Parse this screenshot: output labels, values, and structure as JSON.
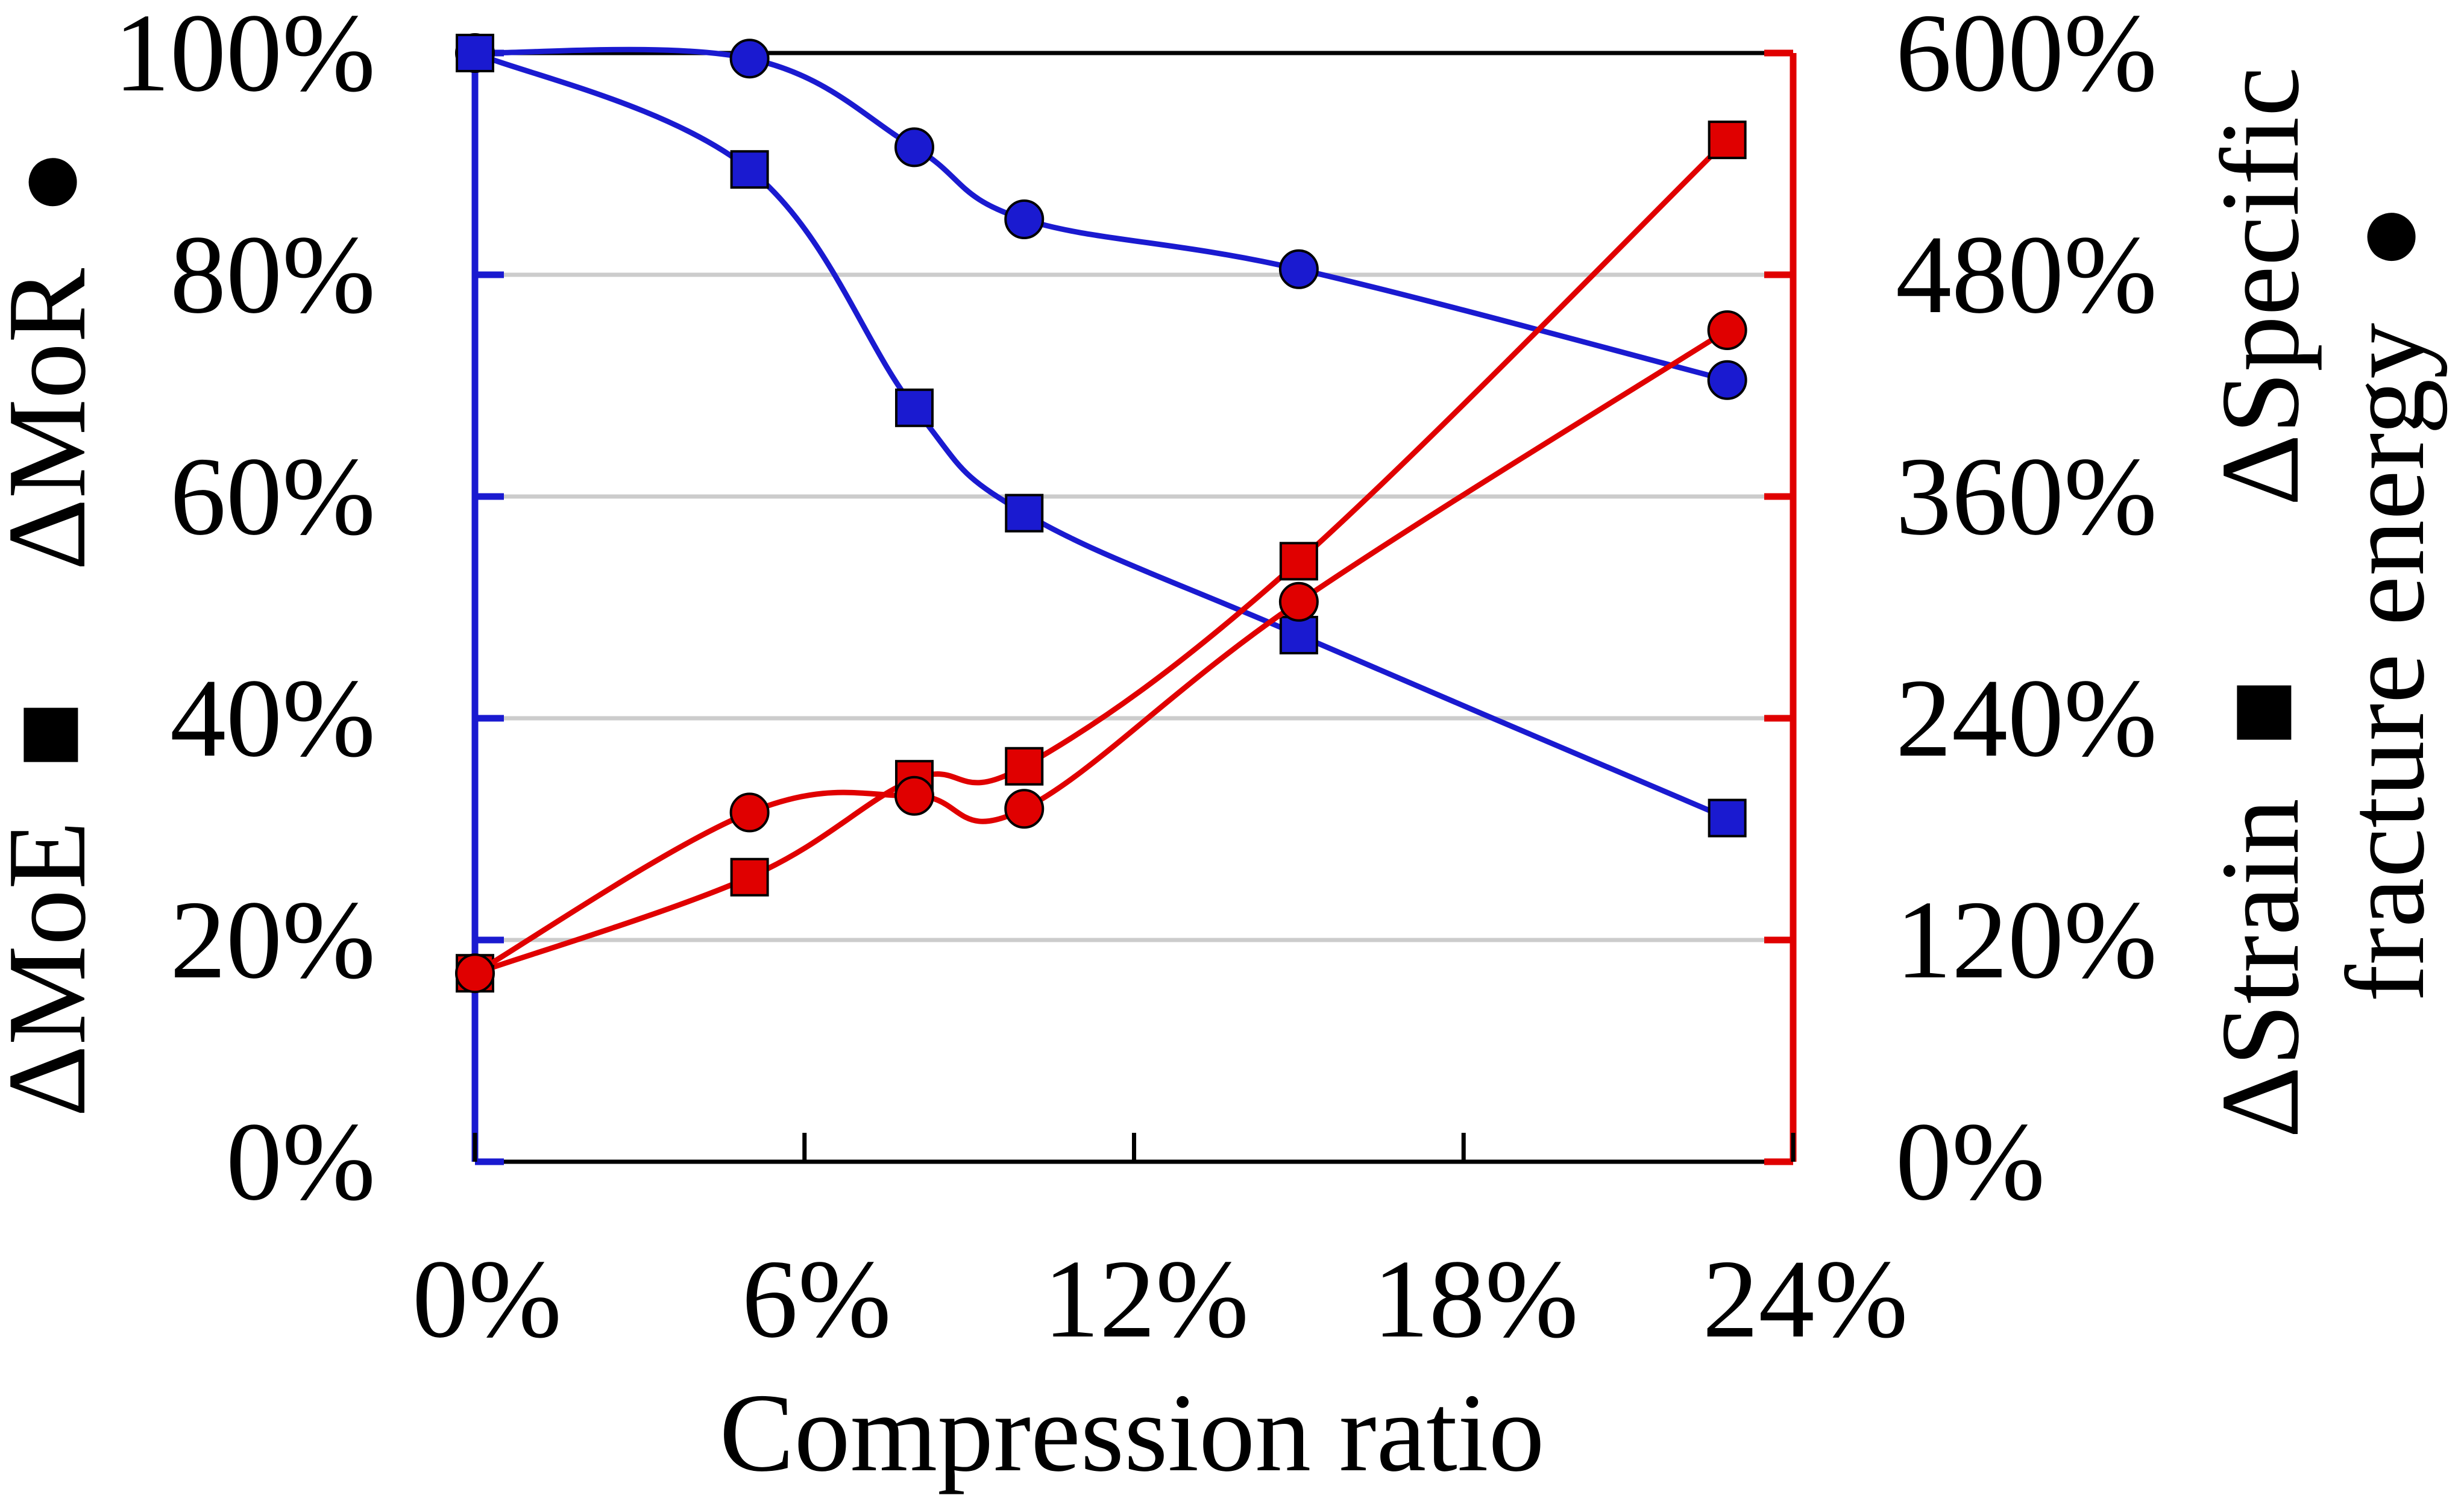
{
  "colors": {
    "left_axis": "#1a1ad0",
    "right_axis": "#e00000",
    "grid": "#cccccc",
    "frame": "#000000",
    "marker_stroke": "#000000"
  },
  "chart_data": {
    "type": "line",
    "xlabel": "Compression ratio",
    "x_unit": "%",
    "xlim": [
      0,
      24
    ],
    "x_ticks": [
      0,
      6,
      12,
      18,
      24
    ],
    "x_tick_labels": [
      "0%",
      "6%",
      "12%",
      "18%",
      "24%"
    ],
    "y_left": {
      "lim": [
        0,
        100
      ],
      "ticks": [
        0,
        20,
        40,
        60,
        80,
        100
      ],
      "tick_labels": [
        "0%",
        "20%",
        "40%",
        "60%",
        "80%",
        "100%"
      ],
      "label_parts": [
        "ΔMoE",
        "■",
        "ΔMoR",
        "●"
      ]
    },
    "y_right": {
      "lim": [
        0,
        600
      ],
      "ticks": [
        0,
        120,
        240,
        360,
        480,
        600
      ],
      "tick_labels": [
        "0%",
        "120%",
        "240%",
        "360%",
        "480%",
        "600%"
      ],
      "label_line1_parts": [
        "ΔStrain",
        "■",
        "ΔSpecific"
      ],
      "label_line2_parts": [
        "fracture energy",
        "●"
      ]
    },
    "series": [
      {
        "name": "ΔMoR",
        "axis": "left",
        "marker": "circle",
        "x": [
          0,
          5,
          8,
          10,
          15,
          22.8
        ],
        "y": [
          100,
          99.5,
          91.5,
          85,
          80.5,
          70.5
        ]
      },
      {
        "name": "ΔMoE",
        "axis": "left",
        "marker": "square",
        "x": [
          0,
          5,
          8,
          10,
          15,
          22.8
        ],
        "y": [
          100,
          89.5,
          68,
          58.5,
          47.5,
          31
        ]
      },
      {
        "name": "ΔStrain",
        "axis": "right",
        "marker": "square",
        "x": [
          0,
          5,
          8,
          10,
          15,
          22.8
        ],
        "y": [
          102,
          154,
          207,
          214,
          325,
          553
        ]
      },
      {
        "name": "ΔSpecific fracture energy",
        "axis": "right",
        "marker": "circle",
        "x": [
          0,
          5,
          8,
          10,
          15,
          22.8
        ],
        "y": [
          102,
          189,
          198,
          191,
          303,
          450
        ]
      }
    ]
  }
}
